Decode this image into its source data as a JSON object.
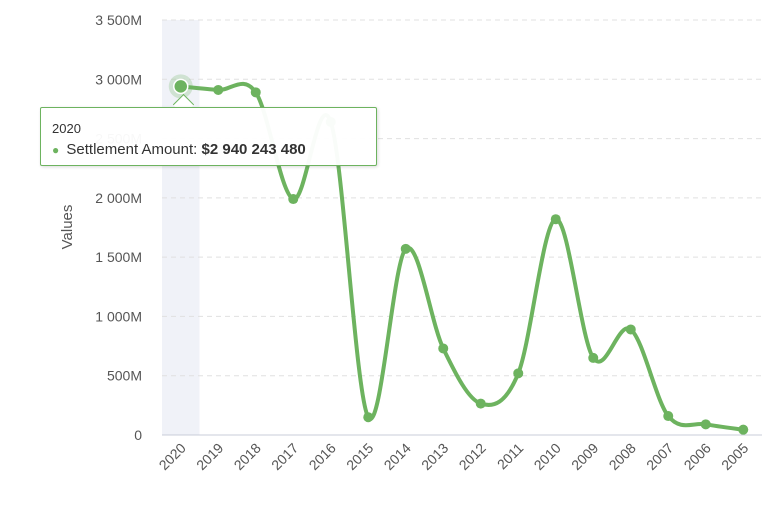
{
  "chart_data": {
    "type": "line",
    "x": [
      "2020",
      "2019",
      "2018",
      "2017",
      "2016",
      "2015",
      "2014",
      "2013",
      "2012",
      "2011",
      "2010",
      "2009",
      "2008",
      "2007",
      "2006",
      "2005"
    ],
    "series": [
      {
        "name": "Settlement Amount",
        "values": [
          2940243480,
          2910000000,
          2890000000,
          1990000000,
          2640000000,
          150000000,
          1570000000,
          730000000,
          265000000,
          520000000,
          1820000000,
          650000000,
          890000000,
          160000000,
          90000000,
          45000000
        ]
      }
    ],
    "ylabel": "Values",
    "ylim": [
      0,
      3500000000
    ],
    "yticks": [
      0,
      500000000,
      1000000000,
      1500000000,
      2000000000,
      2500000000,
      3000000000,
      3500000000
    ],
    "ytick_labels": [
      "0",
      "500M",
      "1 000M",
      "1 500M",
      "2 000M",
      "2 500M",
      "3 000M",
      "3 500M"
    ],
    "grid": true,
    "highlighted_category": "2020"
  },
  "tooltip": {
    "category": "2020",
    "series_name": "Settlement Amount:",
    "value": "$2 940 243 480"
  },
  "colors": {
    "series": "#6db35f",
    "highlight_band": "#f0f2f8",
    "grid": "#e0e0e0"
  }
}
